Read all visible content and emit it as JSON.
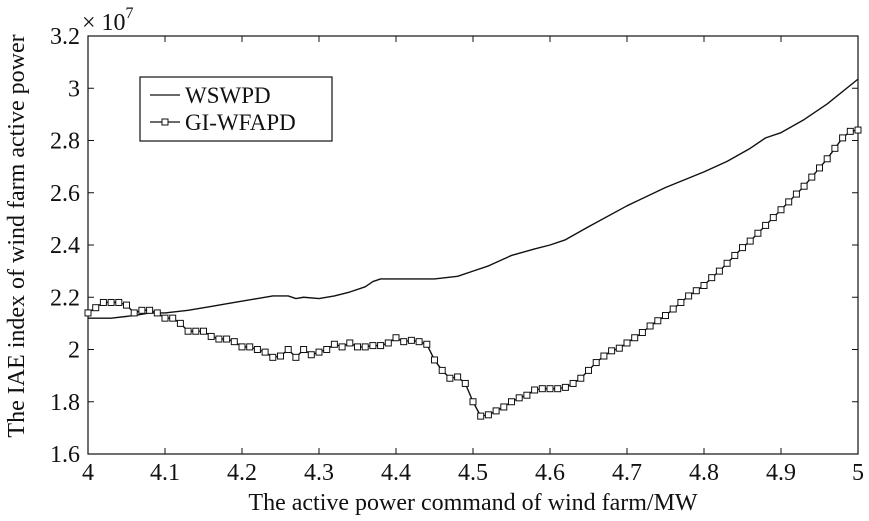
{
  "chart_data": {
    "type": "line",
    "title": "",
    "xlabel": "The active power command of wind farm/MW",
    "ylabel": "The IAE index of wind farm active power",
    "xlim": [
      4.0,
      5.0
    ],
    "ylim": [
      1.6,
      3.2
    ],
    "y_multiplier_label": "× 10",
    "y_multiplier_exponent": "7",
    "xticks": [
      4.0,
      4.1,
      4.2,
      4.3,
      4.4,
      4.5,
      4.6,
      4.7,
      4.8,
      4.9,
      5.0
    ],
    "xtick_labels": [
      "4",
      "4.1",
      "4.2",
      "4.3",
      "4.4",
      "4.5",
      "4.6",
      "4.7",
      "4.8",
      "4.9",
      "5"
    ],
    "yticks": [
      1.6,
      1.8,
      2.0,
      2.2,
      2.4,
      2.6,
      2.8,
      3.0,
      3.2
    ],
    "ytick_labels": [
      "1.6",
      "1.8",
      "2",
      "2.2",
      "2.4",
      "2.6",
      "2.8",
      "3",
      "3.2"
    ],
    "grid": false,
    "legend_position": "top-left",
    "series": [
      {
        "name": "WSWPD",
        "marker": "none",
        "color": "#111111",
        "x": [
          4.0,
          4.03,
          4.06,
          4.08,
          4.1,
          4.13,
          4.16,
          4.19,
          4.22,
          4.24,
          4.26,
          4.27,
          4.28,
          4.3,
          4.32,
          4.34,
          4.36,
          4.37,
          4.38,
          4.4,
          4.42,
          4.45,
          4.48,
          4.5,
          4.52,
          4.55,
          4.58,
          4.6,
          4.62,
          4.65,
          4.7,
          4.75,
          4.8,
          4.83,
          4.86,
          4.88,
          4.9,
          4.93,
          4.96,
          5.0
        ],
        "y": [
          2.12,
          2.12,
          2.13,
          2.14,
          2.14,
          2.15,
          2.165,
          2.18,
          2.195,
          2.205,
          2.205,
          2.195,
          2.2,
          2.195,
          2.205,
          2.22,
          2.24,
          2.26,
          2.27,
          2.27,
          2.27,
          2.27,
          2.28,
          2.3,
          2.32,
          2.36,
          2.385,
          2.4,
          2.42,
          2.47,
          2.55,
          2.62,
          2.68,
          2.72,
          2.77,
          2.81,
          2.83,
          2.88,
          2.94,
          3.035
        ]
      },
      {
        "name": "GI-WFAPD",
        "marker": "square",
        "color": "#111111",
        "x": [
          4.0,
          4.01,
          4.02,
          4.03,
          4.04,
          4.05,
          4.06,
          4.07,
          4.08,
          4.09,
          4.1,
          4.11,
          4.12,
          4.13,
          4.14,
          4.15,
          4.16,
          4.17,
          4.18,
          4.19,
          4.2,
          4.21,
          4.22,
          4.23,
          4.24,
          4.25,
          4.26,
          4.27,
          4.28,
          4.29,
          4.3,
          4.31,
          4.32,
          4.33,
          4.34,
          4.35,
          4.36,
          4.37,
          4.38,
          4.39,
          4.4,
          4.41,
          4.42,
          4.43,
          4.44,
          4.45,
          4.46,
          4.47,
          4.48,
          4.49,
          4.5,
          4.51,
          4.52,
          4.53,
          4.54,
          4.55,
          4.56,
          4.57,
          4.58,
          4.59,
          4.6,
          4.61,
          4.62,
          4.63,
          4.64,
          4.65,
          4.66,
          4.67,
          4.68,
          4.69,
          4.7,
          4.71,
          4.72,
          4.73,
          4.74,
          4.75,
          4.76,
          4.77,
          4.78,
          4.79,
          4.8,
          4.81,
          4.82,
          4.83,
          4.84,
          4.85,
          4.86,
          4.87,
          4.88,
          4.89,
          4.9,
          4.91,
          4.92,
          4.93,
          4.94,
          4.95,
          4.96,
          4.97,
          4.98,
          4.99,
          5.0
        ],
        "y": [
          2.14,
          2.16,
          2.18,
          2.18,
          2.18,
          2.17,
          2.14,
          2.15,
          2.15,
          2.14,
          2.12,
          2.12,
          2.1,
          2.07,
          2.07,
          2.07,
          2.05,
          2.04,
          2.04,
          2.03,
          2.01,
          2.01,
          2.0,
          1.99,
          1.97,
          1.975,
          2.0,
          1.97,
          2.0,
          1.98,
          1.99,
          2.0,
          2.02,
          2.01,
          2.025,
          2.01,
          2.01,
          2.015,
          2.015,
          2.025,
          2.045,
          2.03,
          2.035,
          2.03,
          2.02,
          1.96,
          1.92,
          1.89,
          1.895,
          1.87,
          1.8,
          1.745,
          1.75,
          1.765,
          1.78,
          1.8,
          1.815,
          1.825,
          1.845,
          1.85,
          1.85,
          1.85,
          1.855,
          1.87,
          1.89,
          1.92,
          1.95,
          1.975,
          1.995,
          2.005,
          2.025,
          2.045,
          2.065,
          2.09,
          2.11,
          2.13,
          2.155,
          2.18,
          2.205,
          2.225,
          2.245,
          2.275,
          2.3,
          2.33,
          2.36,
          2.39,
          2.415,
          2.445,
          2.475,
          2.505,
          2.535,
          2.565,
          2.595,
          2.625,
          2.66,
          2.695,
          2.73,
          2.77,
          2.81,
          2.835,
          2.84
        ]
      }
    ]
  }
}
